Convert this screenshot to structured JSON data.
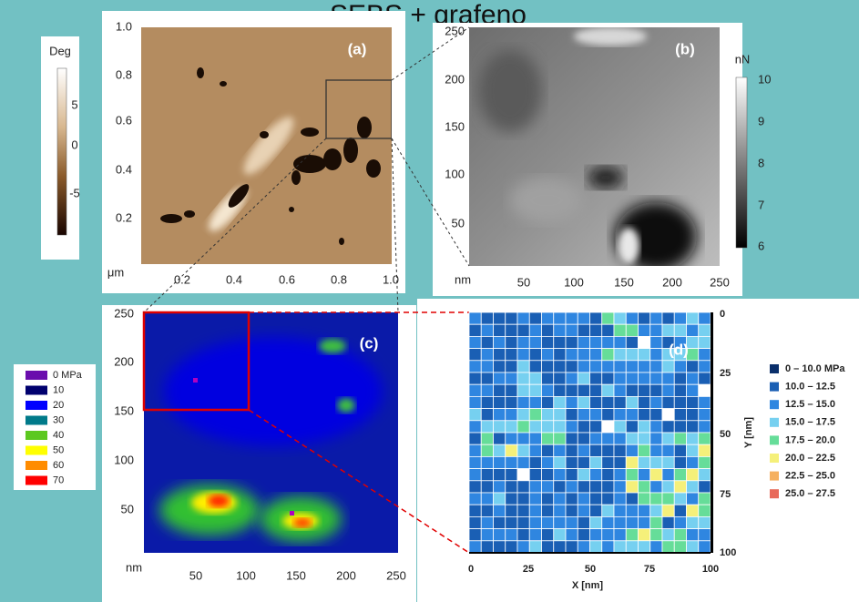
{
  "title": "SEBS + grafeno",
  "panel_a": {
    "label": "(a)",
    "unit": "μm",
    "xticks": [
      "0.2",
      "0.4",
      "0.6",
      "0.8",
      "1.0"
    ],
    "yticks": [
      "1.0",
      "0.8",
      "0.6",
      "0.4",
      "0.2"
    ],
    "colorbar": {
      "title": "Deg",
      "ticks": [
        "5",
        "0",
        "-5"
      ]
    }
  },
  "panel_b": {
    "label": "(b)",
    "unit": "nm",
    "xticks": [
      "50",
      "100",
      "150",
      "200",
      "250"
    ],
    "yticks": [
      "250",
      "200",
      "150",
      "100",
      "50"
    ],
    "colorbar": {
      "title": "nN",
      "ticks": [
        "10",
        "9",
        "8",
        "7",
        "6"
      ]
    }
  },
  "panel_c": {
    "label": "(c)",
    "unit": "nm",
    "xticks": [
      "50",
      "100",
      "150",
      "200",
      "250"
    ],
    "yticks": [
      "250",
      "200",
      "150",
      "100",
      "50"
    ],
    "legend": [
      "0 MPa",
      "10",
      "20",
      "30",
      "40",
      "50",
      "60",
      "70"
    ]
  },
  "panel_d": {
    "label": "(d)",
    "xlabel": "X [nm]",
    "ylabel": "Y [nm]",
    "xticks": [
      "0",
      "25",
      "50",
      "75",
      "100"
    ],
    "yticks": [
      "0",
      "25",
      "50",
      "75",
      "100"
    ],
    "legend": [
      "0 – 10.0 MPa",
      "10.0 – 12.5",
      "12.5 – 15.0",
      "15.0 – 17.5",
      "17.5 – 20.0",
      "20.0 – 22.5",
      "22.5 – 25.0",
      "25.0 – 27.5"
    ]
  }
}
